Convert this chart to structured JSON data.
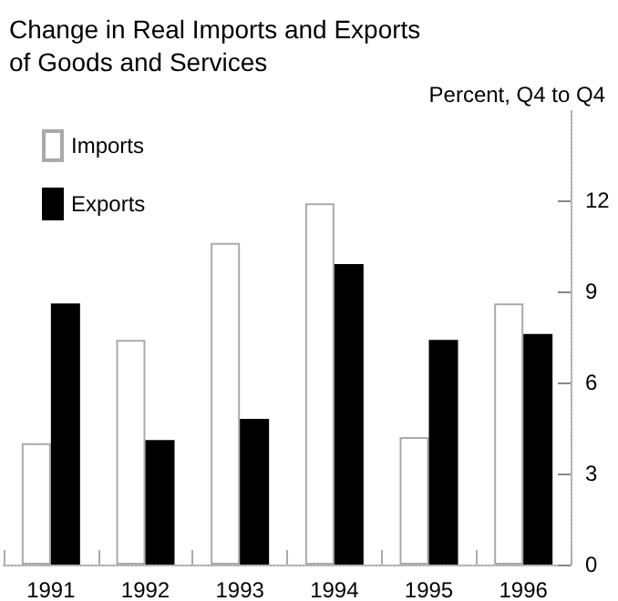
{
  "chart_data": {
    "type": "bar",
    "title": "Change in Real Imports and Exports\nof Goods and Services",
    "ylabel": "Percent, Q4 to Q4",
    "categories": [
      "1991",
      "1992",
      "1993",
      "1994",
      "1995",
      "1996"
    ],
    "series": [
      {
        "name": "Imports",
        "color": "#ffffff",
        "values": [
          4.0,
          7.4,
          10.6,
          11.9,
          4.2,
          8.6
        ]
      },
      {
        "name": "Exports",
        "color": "#000000",
        "values": [
          8.6,
          4.1,
          4.8,
          9.9,
          7.4,
          7.6
        ]
      }
    ],
    "ylim": [
      0,
      15
    ],
    "yticks": [
      0,
      3,
      6,
      9,
      12
    ],
    "grid": false,
    "legend": "top left"
  }
}
